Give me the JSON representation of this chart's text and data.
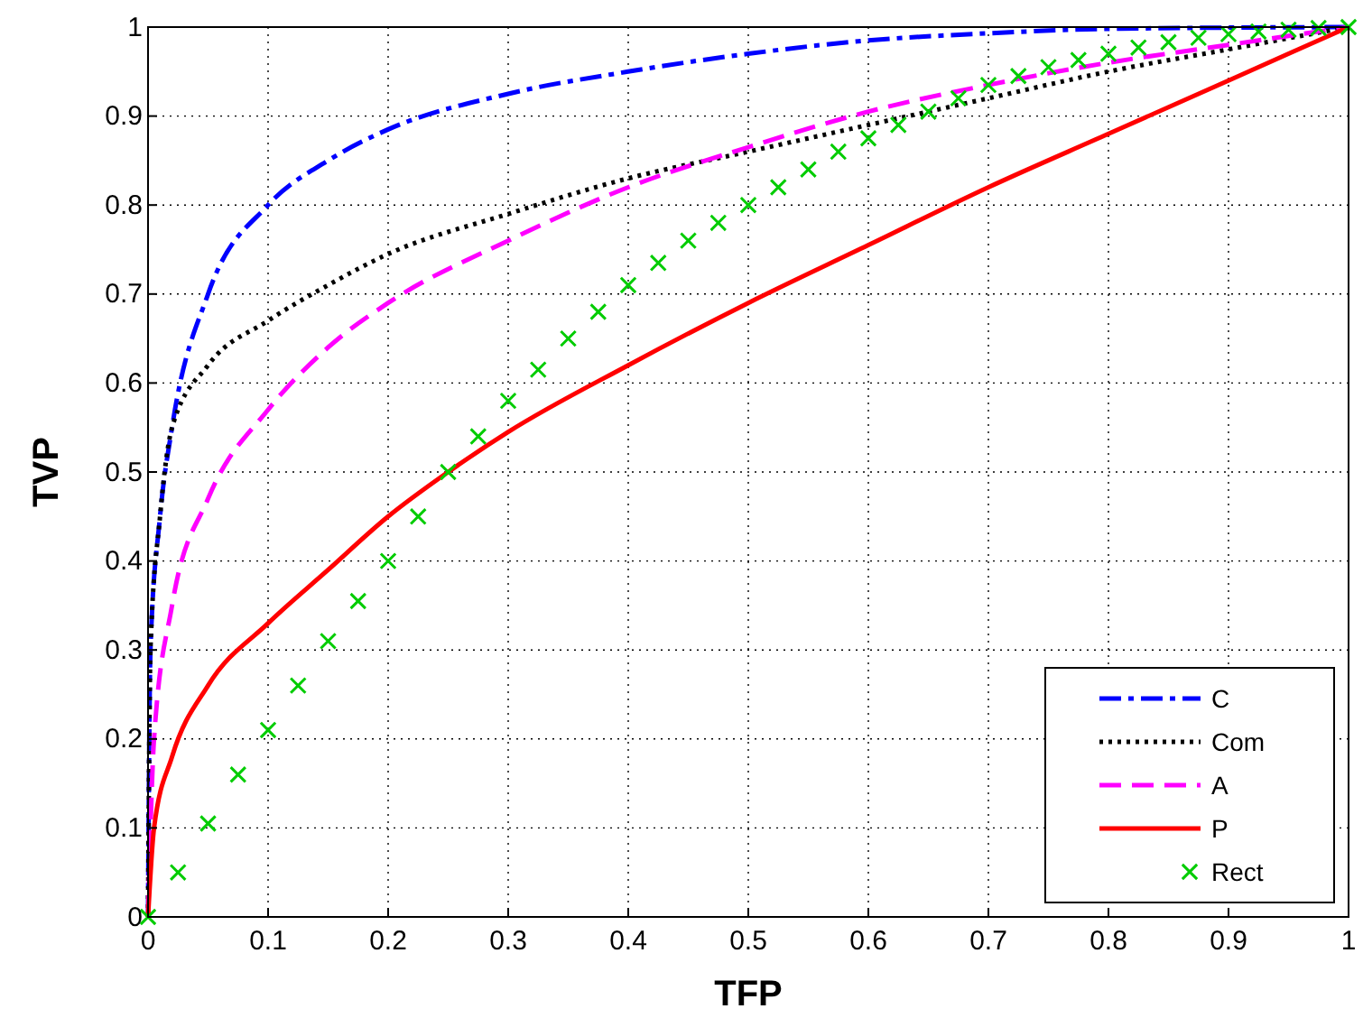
{
  "chart_data": {
    "type": "line",
    "xlabel": "TFP",
    "ylabel": "TVP",
    "xlim": [
      0,
      1
    ],
    "ylim": [
      0,
      1
    ],
    "xticks": [
      0,
      0.1,
      0.2,
      0.3,
      0.4,
      0.5,
      0.6,
      0.7,
      0.8,
      0.9,
      1
    ],
    "yticks": [
      0,
      0.1,
      0.2,
      0.3,
      0.4,
      0.5,
      0.6,
      0.7,
      0.8,
      0.9,
      1
    ],
    "grid": true,
    "legend": "bottom right",
    "series": [
      {
        "name": "C",
        "color": "#0000ff",
        "line_style": "dashdot",
        "x": [
          0,
          0.002,
          0.01,
          0.02,
          0.05,
          0.1,
          0.15,
          0.2,
          0.3,
          0.4,
          0.5,
          0.6,
          0.7,
          0.8,
          1
        ],
        "values": [
          0,
          0.3,
          0.45,
          0.55,
          0.7,
          0.8,
          0.85,
          0.885,
          0.925,
          0.95,
          0.97,
          0.985,
          0.993,
          0.998,
          1
        ]
      },
      {
        "name": "Com",
        "color": "#000000",
        "line_style": "dotted",
        "x": [
          0,
          0.002,
          0.01,
          0.02,
          0.05,
          0.1,
          0.15,
          0.2,
          0.3,
          0.4,
          0.5,
          0.6,
          0.7,
          0.8,
          0.9,
          1
        ],
        "values": [
          0,
          0.3,
          0.45,
          0.55,
          0.62,
          0.67,
          0.71,
          0.745,
          0.79,
          0.83,
          0.86,
          0.89,
          0.92,
          0.95,
          0.975,
          1
        ]
      },
      {
        "name": "A",
        "color": "#ff00ff",
        "line_style": "dashed",
        "x": [
          0,
          0.005,
          0.02,
          0.05,
          0.1,
          0.15,
          0.2,
          0.3,
          0.4,
          0.5,
          0.6,
          0.7,
          0.8,
          0.9,
          1
        ],
        "values": [
          0,
          0.2,
          0.35,
          0.47,
          0.57,
          0.64,
          0.69,
          0.76,
          0.82,
          0.865,
          0.905,
          0.935,
          0.96,
          0.98,
          1
        ]
      },
      {
        "name": "P",
        "color": "#ff0000",
        "line_style": "solid",
        "x": [
          0,
          0.005,
          0.02,
          0.05,
          0.1,
          0.15,
          0.2,
          0.25,
          0.3,
          0.4,
          0.5,
          0.6,
          0.7,
          0.8,
          0.9,
          1
        ],
        "values": [
          0,
          0.1,
          0.18,
          0.26,
          0.33,
          0.39,
          0.45,
          0.5,
          0.545,
          0.62,
          0.69,
          0.755,
          0.82,
          0.88,
          0.94,
          1
        ]
      },
      {
        "name": "Rect",
        "type": "scatter",
        "marker": "cross",
        "color": "#00cc00",
        "x": [
          0,
          0.025,
          0.05,
          0.075,
          0.1,
          0.125,
          0.15,
          0.175,
          0.2,
          0.225,
          0.25,
          0.275,
          0.3,
          0.325,
          0.35,
          0.375,
          0.4,
          0.425,
          0.45,
          0.475,
          0.5,
          0.525,
          0.55,
          0.575,
          0.6,
          0.625,
          0.65,
          0.675,
          0.7,
          0.725,
          0.75,
          0.775,
          0.8,
          0.825,
          0.85,
          0.875,
          0.9,
          0.925,
          0.95,
          0.975,
          1
        ],
        "values": [
          0,
          0.05,
          0.105,
          0.16,
          0.21,
          0.26,
          0.31,
          0.355,
          0.4,
          0.45,
          0.5,
          0.54,
          0.58,
          0.615,
          0.65,
          0.68,
          0.71,
          0.735,
          0.76,
          0.78,
          0.8,
          0.82,
          0.84,
          0.86,
          0.875,
          0.89,
          0.905,
          0.92,
          0.935,
          0.945,
          0.955,
          0.963,
          0.97,
          0.977,
          0.983,
          0.988,
          0.992,
          0.995,
          0.997,
          0.999,
          1
        ]
      }
    ]
  }
}
